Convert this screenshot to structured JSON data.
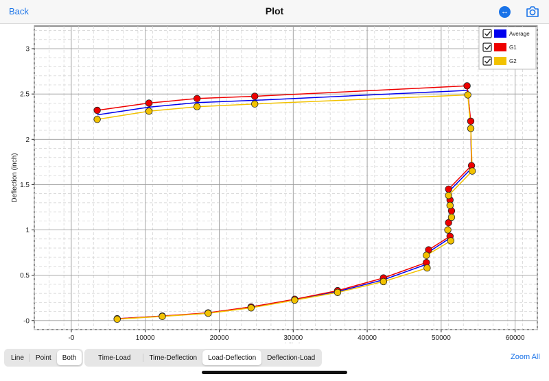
{
  "nav": {
    "back_label": "Back",
    "title": "Plot"
  },
  "plot": {
    "ylabel": "Deflection (inch)",
    "xlabel": "Load (lbs)",
    "xticks": [
      "-0",
      "10000",
      "20000",
      "30000",
      "40000",
      "50000",
      "60000"
    ],
    "yticks": [
      "-0",
      "0.5",
      "1",
      "1.5",
      "2",
      "2.5",
      "3"
    ],
    "legend": [
      {
        "name": "Average",
        "color": "#0000ee",
        "checked": true
      },
      {
        "name": "G1",
        "color": "#ee0000",
        "checked": true
      },
      {
        "name": "G2",
        "color": "#f2c200",
        "checked": true
      }
    ]
  },
  "chart_data": {
    "type": "scatter",
    "xlabel": "Load (lbs)",
    "ylabel": "Deflection (inch)",
    "xlim": [
      -5000,
      63000
    ],
    "ylim": [
      -0.1,
      3.25
    ],
    "grid": true,
    "legend_position": "top-right",
    "series": [
      {
        "name": "Average",
        "color": "#0000ee",
        "points": [
          [
            3500,
            2.27
          ],
          [
            10500,
            2.355
          ],
          [
            17000,
            2.405
          ],
          [
            24800,
            2.43
          ],
          [
            53600,
            2.54
          ],
          [
            54000,
            2.16
          ],
          [
            54100,
            1.68
          ],
          [
            51000,
            1.42
          ],
          [
            51200,
            1.3
          ],
          [
            51400,
            1.18
          ],
          [
            51000,
            1.05
          ],
          [
            51000,
            0.9
          ],
          [
            48200,
            0.75
          ],
          [
            48000,
            0.62
          ],
          [
            42200,
            0.45
          ],
          [
            36000,
            0.32
          ],
          [
            30200,
            0.23
          ],
          [
            24300,
            0.15
          ],
          [
            18500,
            0.08
          ],
          [
            12300,
            0.05
          ],
          [
            6200,
            0.02
          ]
        ]
      },
      {
        "name": "G1",
        "color": "#ee0000",
        "points": [
          [
            3500,
            2.32
          ],
          [
            10500,
            2.4
          ],
          [
            17000,
            2.45
          ],
          [
            24800,
            2.475
          ],
          [
            53500,
            2.59
          ],
          [
            54000,
            2.2
          ],
          [
            54100,
            1.71
          ],
          [
            51000,
            1.45
          ],
          [
            51200,
            1.33
          ],
          [
            51400,
            1.21
          ],
          [
            51000,
            1.08
          ],
          [
            51200,
            0.93
          ],
          [
            48300,
            0.78
          ],
          [
            48000,
            0.64
          ],
          [
            42200,
            0.47
          ],
          [
            36000,
            0.33
          ],
          [
            30200,
            0.235
          ],
          [
            24300,
            0.15
          ],
          [
            18500,
            0.085
          ],
          [
            12300,
            0.05
          ],
          [
            6200,
            0.02
          ]
        ]
      },
      {
        "name": "G2",
        "color": "#f2c200",
        "points": [
          [
            3500,
            2.22
          ],
          [
            10500,
            2.31
          ],
          [
            17000,
            2.36
          ],
          [
            24800,
            2.39
          ],
          [
            53600,
            2.49
          ],
          [
            54000,
            2.12
          ],
          [
            54200,
            1.65
          ],
          [
            51000,
            1.38
          ],
          [
            51200,
            1.27
          ],
          [
            51400,
            1.14
          ],
          [
            50900,
            1.0
          ],
          [
            51300,
            0.88
          ],
          [
            48000,
            0.72
          ],
          [
            48100,
            0.58
          ],
          [
            42200,
            0.43
          ],
          [
            36000,
            0.31
          ],
          [
            30200,
            0.225
          ],
          [
            24300,
            0.14
          ],
          [
            18500,
            0.08
          ],
          [
            12300,
            0.045
          ],
          [
            6200,
            0.015
          ]
        ]
      }
    ]
  },
  "bottom": {
    "mode_buttons": [
      "Line",
      "Point",
      "Both"
    ],
    "mode_selected": "Both",
    "plot_types": [
      "Time-Load",
      "Time-Deflection",
      "Load-Deflection",
      "Deflection-Load"
    ],
    "plot_type_selected": "Load-Deflection",
    "zoom_label": "Zoom All"
  }
}
